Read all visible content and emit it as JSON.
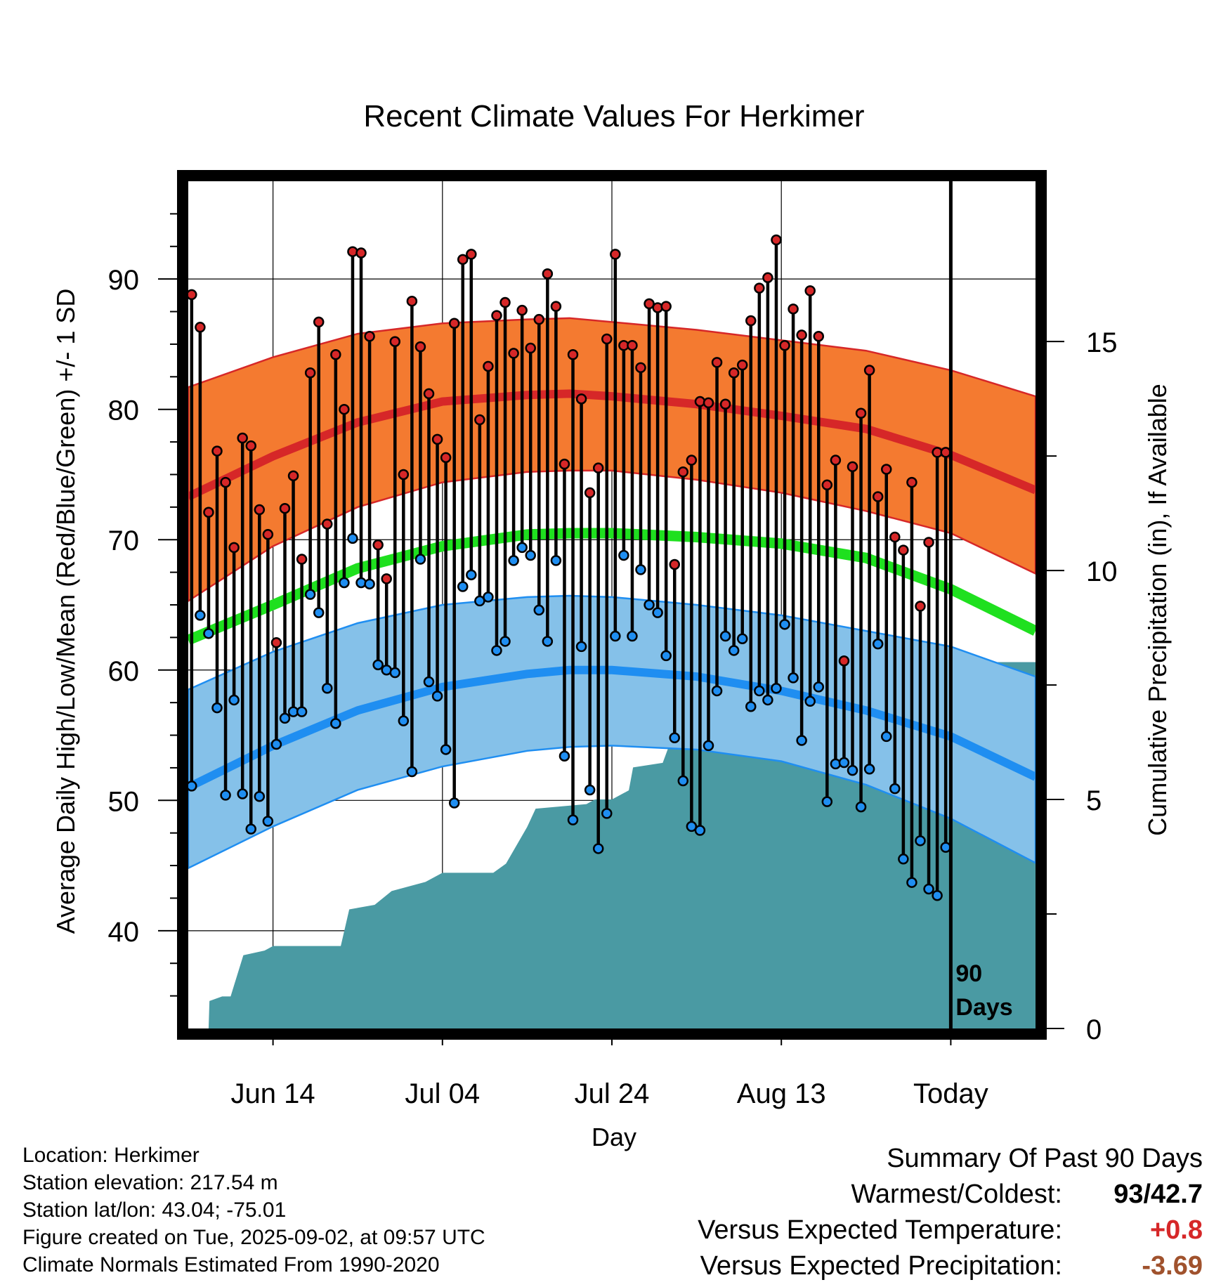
{
  "chart_data": {
    "type": "line",
    "title": "Recent Climate Values For Herkimer",
    "xlabel": "Day",
    "ylabel_left": "Average Daily High/Low/Mean (Red/Blue/Green) +/- 1 SD",
    "ylabel_right": "Cumulative Precipitation (in), If Available",
    "ylim": [
      32.5,
      97.5
    ],
    "y2lim": [
      0,
      18.5
    ],
    "xlim": [
      0,
      100
    ],
    "x_ticks": [
      {
        "x": 10,
        "label": "Jun 14"
      },
      {
        "x": 30,
        "label": "Jul 04"
      },
      {
        "x": 50,
        "label": "Jul 24"
      },
      {
        "x": 70,
        "label": "Aug 13"
      },
      {
        "x": 90,
        "label": "Today"
      }
    ],
    "y_ticks": [
      40,
      50,
      60,
      70,
      80,
      90
    ],
    "y2_ticks": [
      0,
      5,
      10,
      15
    ],
    "today_marker": {
      "x": 90,
      "label_line1": "90",
      "label_line2": "Days"
    },
    "normals": {
      "x": [
        0,
        10,
        20,
        30,
        40,
        45,
        50,
        60,
        70,
        80,
        90,
        100
      ],
      "high_mean": [
        73.3,
        76.4,
        79.0,
        80.6,
        81.1,
        81.2,
        81.0,
        80.4,
        79.5,
        78.5,
        76.5,
        73.8
      ],
      "high_upper": [
        81.7,
        84.0,
        85.8,
        86.6,
        86.9,
        87.0,
        86.7,
        86.1,
        85.3,
        84.5,
        83.0,
        81.0
      ],
      "high_lower": [
        65.3,
        69.5,
        72.5,
        74.4,
        75.2,
        75.3,
        75.3,
        74.6,
        73.6,
        72.2,
        70.5,
        67.4
      ],
      "avg_mean": [
        62.3,
        65.0,
        67.8,
        69.5,
        70.4,
        70.5,
        70.5,
        70.2,
        69.7,
        68.6,
        66.2,
        63.0
      ],
      "low_mean": [
        51.0,
        54.2,
        56.9,
        58.7,
        59.7,
        60.0,
        60.0,
        59.5,
        58.4,
        56.9,
        54.9,
        51.8
      ],
      "low_upper": [
        58.5,
        61.4,
        63.6,
        65.0,
        65.6,
        65.7,
        65.6,
        65.0,
        64.2,
        63.0,
        61.8,
        59.5
      ],
      "low_lower": [
        44.8,
        48.0,
        50.8,
        52.6,
        53.8,
        54.1,
        54.2,
        53.9,
        53.0,
        51.2,
        48.6,
        45.2
      ]
    },
    "series": [
      {
        "name": "High",
        "color": "#d62728",
        "values": [
          88.8,
          86.3,
          72.1,
          76.8,
          74.4,
          69.4,
          77.8,
          77.2,
          72.3,
          70.4,
          62.1,
          72.4,
          74.9,
          68.5,
          82.8,
          86.7,
          71.2,
          84.2,
          80.0,
          92.1,
          92.0,
          85.6,
          69.6,
          67.0,
          85.2,
          75.0,
          88.3,
          84.8,
          81.2,
          77.7,
          76.3,
          86.6,
          91.5,
          91.9,
          79.2,
          83.3,
          87.2,
          88.2,
          84.3,
          87.6,
          84.7,
          86.9,
          90.4,
          87.9,
          75.8,
          84.2,
          80.8,
          73.6,
          75.5,
          85.4,
          91.9,
          84.9,
          84.9,
          83.2,
          88.1,
          87.8,
          87.9,
          68.1,
          75.2,
          76.1,
          80.6,
          80.5,
          83.6,
          80.4,
          82.8,
          83.4,
          86.8,
          89.3,
          90.1,
          93.0,
          84.9,
          87.7,
          85.7,
          89.1,
          85.6,
          74.2,
          76.1,
          60.7,
          75.6,
          79.7,
          83.0,
          73.3,
          75.4,
          70.2,
          69.2,
          74.4,
          64.9,
          69.8,
          76.7,
          76.7
        ]
      },
      {
        "name": "Low",
        "color": "#1f8ef1",
        "values": [
          51.1,
          64.2,
          62.8,
          57.1,
          50.4,
          57.7,
          50.5,
          47.8,
          50.3,
          48.4,
          54.3,
          56.3,
          56.8,
          56.8,
          65.8,
          64.4,
          58.6,
          55.9,
          66.7,
          70.1,
          66.7,
          66.6,
          60.4,
          60.0,
          59.8,
          56.1,
          52.2,
          68.5,
          59.1,
          58.0,
          53.9,
          49.8,
          66.4,
          67.3,
          65.3,
          65.6,
          61.5,
          62.2,
          68.4,
          69.4,
          68.8,
          64.6,
          62.2,
          68.4,
          53.4,
          48.5,
          61.8,
          50.8,
          46.3,
          49.0,
          62.6,
          68.8,
          62.6,
          67.7,
          65.0,
          64.4,
          61.1,
          54.8,
          51.5,
          48.0,
          47.7,
          54.2,
          58.4,
          62.6,
          61.5,
          62.4,
          57.2,
          58.4,
          57.7,
          58.6,
          63.5,
          59.4,
          54.6,
          57.6,
          58.7,
          49.9,
          52.8,
          52.9,
          52.3,
          49.5,
          52.4,
          62.0,
          54.9,
          50.9,
          45.5,
          43.7,
          46.9,
          43.2,
          42.7,
          46.4
        ]
      }
    ],
    "precipitation": {
      "color": "#4a9aa3",
      "x": [
        0,
        2.4,
        2.5,
        4,
        5,
        5.5,
        6.5,
        9,
        10,
        18,
        19,
        22,
        24,
        28,
        30,
        36,
        37.5,
        40,
        41,
        47,
        48,
        50,
        52,
        52.5,
        56,
        57,
        66,
        69,
        70,
        78,
        79,
        82,
        82.5,
        84,
        86,
        90,
        100
      ],
      "values": [
        0,
        0,
        0.6,
        0.7,
        0.7,
        1.0,
        1.6,
        1.7,
        1.8,
        1.8,
        2.6,
        2.7,
        3.0,
        3.2,
        3.4,
        3.4,
        3.6,
        4.4,
        4.8,
        4.9,
        5.0,
        5.0,
        5.2,
        5.7,
        5.8,
        6.3,
        6.7,
        6.7,
        6.7,
        6.7,
        7.5,
        7.5,
        7.8,
        7.9,
        8.0,
        8.0,
        8.0
      ]
    }
  },
  "info": {
    "location": "Location: Herkimer",
    "elevation": "Station elevation: 217.54 m",
    "latlon": "Station lat/lon: 43.04; -75.01",
    "created": "Figure created on Tue, 2025-09-02, at 09:57 UTC",
    "normals_period": "Climate Normals Estimated From 1990-2020"
  },
  "summary": {
    "title": "Summary Of Past 90 Days",
    "warmest_label": "Warmest/Coldest:",
    "warmest_value": "93",
    "coldest_value": "42.7",
    "temp_label": "Versus Expected Temperature:",
    "temp_value": "+0.8",
    "temp_color": "#d62728",
    "precip_label": "Versus Expected Precipitation:",
    "precip_value": "-3.69",
    "precip_color": "#a0522d"
  }
}
